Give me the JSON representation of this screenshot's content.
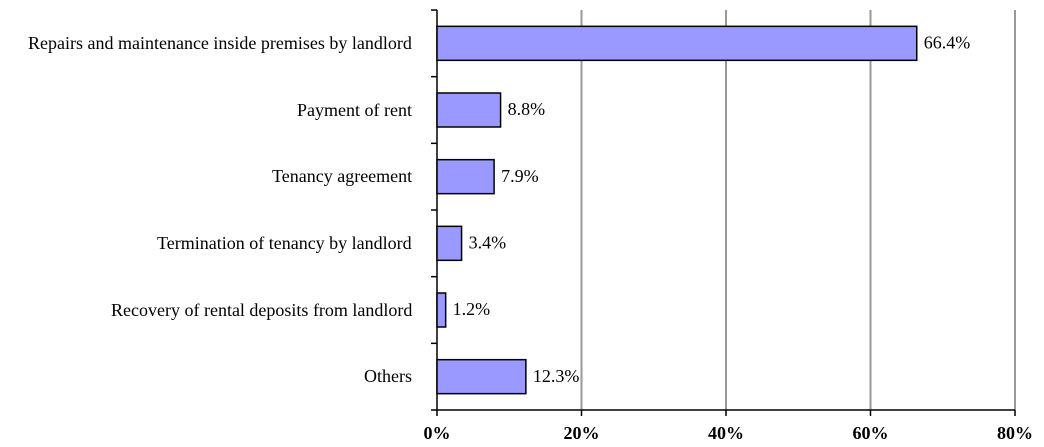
{
  "chart_data": {
    "type": "barh",
    "categories": [
      "Repairs and maintenance inside premises by landlord",
      "Payment of rent",
      "Tenancy agreement",
      "Termination of tenancy by landlord",
      "Recovery of rental deposits from landlord",
      "Others"
    ],
    "values": [
      66.4,
      8.8,
      7.9,
      3.4,
      1.2,
      12.3
    ],
    "value_labels": [
      "66.4%",
      "8.8%",
      "7.9%",
      "3.4%",
      "1.2%",
      "12.3%"
    ],
    "color": "#9999ff",
    "xlim": [
      0,
      80
    ],
    "xticks": [
      {
        "value": 0,
        "label": "0%"
      },
      {
        "value": 20,
        "label": "20%"
      },
      {
        "value": 40,
        "label": "40%"
      },
      {
        "value": 60,
        "label": "60%"
      },
      {
        "value": 80,
        "label": "80%"
      }
    ],
    "grid": true
  }
}
